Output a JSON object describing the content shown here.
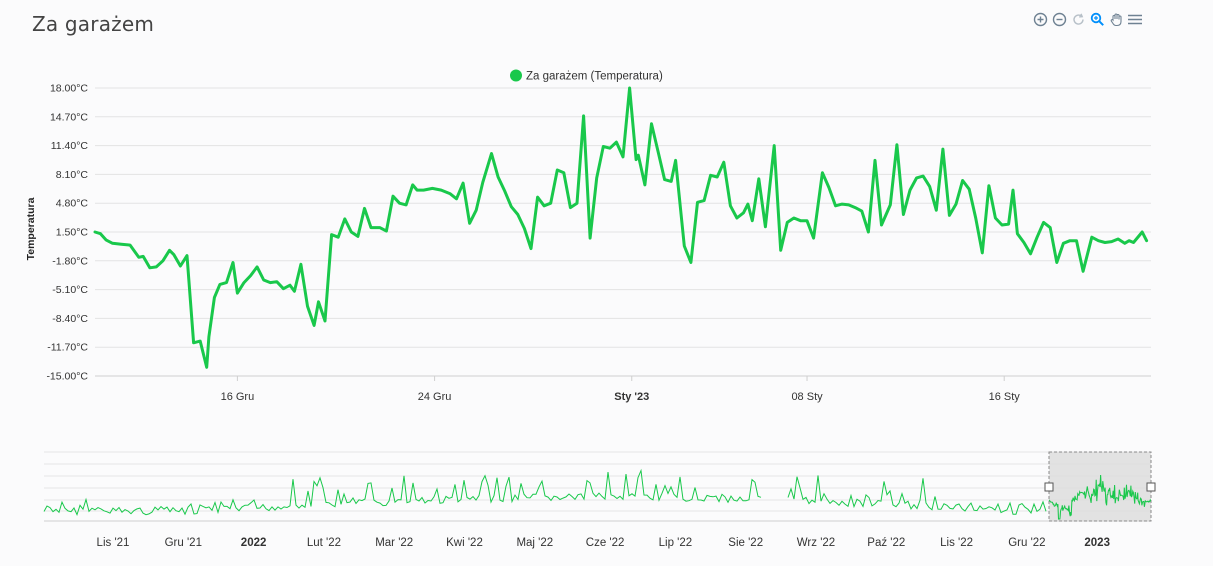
{
  "title": "Za garażem",
  "toolbar": {
    "zoom_in": "zoom-in-icon",
    "zoom_out": "zoom-out-icon",
    "reset": "reset-icon",
    "zoom_select": "magnifier-icon",
    "pan": "hand-pan-icon",
    "menu": "menu-icon"
  },
  "colors": {
    "series": "#19c84b",
    "grid": "#e3e3e3",
    "selection": "#d9d9d9"
  },
  "chart_data": {
    "type": "line",
    "title": "Za garażem",
    "legend": [
      "Za garażem (Temperatura)"
    ],
    "legend_position": "top-center",
    "ylabel": "Temperatura",
    "xlabel": "",
    "ylim": [
      -15.0,
      18.0
    ],
    "yticks": [
      "18.00°C",
      "14.70°C",
      "11.40°C",
      "8.10°C",
      "4.80°C",
      "1.50°C",
      "-1.80°C",
      "-5.10°C",
      "-8.40°C",
      "-11.70°C",
      "-15.00°C"
    ],
    "xlim_days": [
      0,
      48.2
    ],
    "xticks": [
      {
        "day": 6.5,
        "label": "16 Gru",
        "bold": false
      },
      {
        "day": 15.5,
        "label": "24 Gru",
        "bold": false
      },
      {
        "day": 24.5,
        "label": "Sty '23",
        "bold": true
      },
      {
        "day": 32.5,
        "label": "08 Sty",
        "bold": false
      },
      {
        "day": 41.5,
        "label": "16 Sty",
        "bold": false
      }
    ],
    "series": [
      {
        "name": "Za garażem (Temperatura)",
        "points": [
          [
            0.0,
            1.5
          ],
          [
            0.25,
            1.3
          ],
          [
            0.5,
            0.6
          ],
          [
            0.8,
            0.2
          ],
          [
            1.2,
            0.1
          ],
          [
            1.6,
            0.0
          ],
          [
            2.0,
            -1.4
          ],
          [
            2.2,
            -1.3
          ],
          [
            2.5,
            -2.6
          ],
          [
            2.8,
            -2.5
          ],
          [
            3.1,
            -1.8
          ],
          [
            3.4,
            -0.6
          ],
          [
            3.6,
            -1.1
          ],
          [
            3.9,
            -2.4
          ],
          [
            4.2,
            -1.2
          ],
          [
            4.5,
            -11.2
          ],
          [
            4.8,
            -11.0
          ],
          [
            5.1,
            -14.0
          ],
          [
            5.2,
            -10.5
          ],
          [
            5.45,
            -6.0
          ],
          [
            5.7,
            -4.5
          ],
          [
            6.0,
            -4.3
          ],
          [
            6.3,
            -2.0
          ],
          [
            6.5,
            -5.5
          ],
          [
            6.8,
            -4.3
          ],
          [
            7.1,
            -3.5
          ],
          [
            7.4,
            -2.5
          ],
          [
            7.7,
            -4.0
          ],
          [
            8.0,
            -4.3
          ],
          [
            8.3,
            -4.2
          ],
          [
            8.6,
            -5.0
          ],
          [
            8.9,
            -4.6
          ],
          [
            9.1,
            -5.3
          ],
          [
            9.4,
            -2.2
          ],
          [
            9.7,
            -7.0
          ],
          [
            10.0,
            -9.2
          ],
          [
            10.2,
            -6.5
          ],
          [
            10.5,
            -8.7
          ],
          [
            10.8,
            1.2
          ],
          [
            11.1,
            0.9
          ],
          [
            11.4,
            3.0
          ],
          [
            11.7,
            1.5
          ],
          [
            12.0,
            1.0
          ],
          [
            12.3,
            4.2
          ],
          [
            12.6,
            2.0
          ],
          [
            13.0,
            2.0
          ],
          [
            13.3,
            1.6
          ],
          [
            13.6,
            5.6
          ],
          [
            13.9,
            4.8
          ],
          [
            14.2,
            4.6
          ],
          [
            14.5,
            6.9
          ],
          [
            14.7,
            6.3
          ],
          [
            15.0,
            6.3
          ],
          [
            15.4,
            6.5
          ],
          [
            15.8,
            6.3
          ],
          [
            16.2,
            5.9
          ],
          [
            16.5,
            5.3
          ],
          [
            16.8,
            7.1
          ],
          [
            17.1,
            2.5
          ],
          [
            17.4,
            4.0
          ],
          [
            17.7,
            7.2
          ],
          [
            18.1,
            10.5
          ],
          [
            18.4,
            7.8
          ],
          [
            18.7,
            6.2
          ],
          [
            19.0,
            4.4
          ],
          [
            19.3,
            3.5
          ],
          [
            19.6,
            1.9
          ],
          [
            19.9,
            -0.4
          ],
          [
            20.2,
            5.5
          ],
          [
            20.5,
            4.5
          ],
          [
            20.8,
            4.8
          ],
          [
            21.1,
            8.6
          ],
          [
            21.4,
            8.3
          ],
          [
            21.7,
            4.3
          ],
          [
            22.0,
            4.8
          ],
          [
            22.3,
            14.8
          ],
          [
            22.6,
            0.8
          ],
          [
            22.9,
            7.7
          ],
          [
            23.2,
            11.3
          ],
          [
            23.5,
            11.1
          ],
          [
            23.8,
            11.8
          ],
          [
            24.1,
            10.1
          ],
          [
            24.4,
            18.0
          ],
          [
            24.7,
            9.8
          ],
          [
            24.8,
            10.3
          ],
          [
            25.1,
            6.9
          ],
          [
            25.4,
            13.9
          ],
          [
            25.7,
            10.7
          ],
          [
            26.0,
            7.5
          ],
          [
            26.3,
            7.3
          ],
          [
            26.5,
            9.7
          ],
          [
            26.9,
            -0.1
          ],
          [
            27.2,
            -2.0
          ],
          [
            27.5,
            4.9
          ],
          [
            27.8,
            5.1
          ],
          [
            28.1,
            8.0
          ],
          [
            28.4,
            7.8
          ],
          [
            28.7,
            9.5
          ],
          [
            29.0,
            4.5
          ],
          [
            29.3,
            3.1
          ],
          [
            29.6,
            3.7
          ],
          [
            29.8,
            4.7
          ],
          [
            30.0,
            2.8
          ],
          [
            30.3,
            7.6
          ],
          [
            30.6,
            2.1
          ],
          [
            31.0,
            11.4
          ],
          [
            31.3,
            -0.6
          ],
          [
            31.6,
            2.6
          ],
          [
            31.9,
            3.1
          ],
          [
            32.2,
            2.8
          ],
          [
            32.5,
            2.8
          ],
          [
            32.8,
            0.8
          ],
          [
            33.2,
            8.3
          ],
          [
            33.5,
            6.6
          ],
          [
            33.8,
            4.5
          ],
          [
            34.1,
            4.7
          ],
          [
            34.4,
            4.6
          ],
          [
            34.7,
            4.3
          ],
          [
            35.0,
            3.9
          ],
          [
            35.3,
            1.5
          ],
          [
            35.6,
            9.7
          ],
          [
            35.9,
            2.3
          ],
          [
            36.3,
            4.6
          ],
          [
            36.6,
            11.5
          ],
          [
            36.9,
            3.5
          ],
          [
            37.2,
            6.3
          ],
          [
            37.5,
            7.7
          ],
          [
            37.8,
            7.9
          ],
          [
            38.1,
            6.7
          ],
          [
            38.4,
            4.0
          ],
          [
            38.7,
            11.0
          ],
          [
            39.0,
            3.4
          ],
          [
            39.3,
            4.7
          ],
          [
            39.6,
            7.4
          ],
          [
            39.9,
            6.4
          ],
          [
            40.2,
            3.1
          ],
          [
            40.5,
            -0.9
          ],
          [
            40.8,
            6.8
          ],
          [
            41.1,
            3.1
          ],
          [
            41.4,
            2.3
          ],
          [
            41.7,
            2.4
          ],
          [
            41.9,
            6.3
          ],
          [
            42.1,
            1.3
          ],
          [
            42.4,
            0.3
          ],
          [
            42.7,
            -1.0
          ],
          [
            43.0,
            0.9
          ],
          [
            43.3,
            2.6
          ],
          [
            43.6,
            2.0
          ],
          [
            43.9,
            -2.0
          ],
          [
            44.2,
            0.2
          ],
          [
            44.5,
            0.5
          ],
          [
            44.8,
            0.5
          ],
          [
            45.1,
            -3.0
          ],
          [
            45.5,
            0.9
          ],
          [
            45.8,
            0.5
          ],
          [
            46.1,
            0.3
          ],
          [
            46.4,
            0.4
          ],
          [
            46.7,
            0.7
          ],
          [
            47.0,
            0.2
          ],
          [
            47.2,
            0.5
          ],
          [
            47.4,
            0.3
          ],
          [
            47.8,
            1.5
          ],
          [
            48.0,
            0.5
          ]
        ]
      }
    ],
    "navigator": {
      "labels": [
        {
          "label": "Lis '21",
          "bold": false
        },
        {
          "label": "Gru '21",
          "bold": false
        },
        {
          "label": "2022",
          "bold": true
        },
        {
          "label": "Lut '22",
          "bold": false
        },
        {
          "label": "Mar '22",
          "bold": false
        },
        {
          "label": "Kwi '22",
          "bold": false
        },
        {
          "label": "Maj '22",
          "bold": false
        },
        {
          "label": "Cze '22",
          "bold": false
        },
        {
          "label": "Lip '22",
          "bold": false
        },
        {
          "label": "Sie '22",
          "bold": false
        },
        {
          "label": "Wrz '22",
          "bold": false
        },
        {
          "label": "Paź '22",
          "bold": false
        },
        {
          "label": "Lis '22",
          "bold": false
        },
        {
          "label": "Gru '22",
          "bold": false
        },
        {
          "label": "2023",
          "bold": true
        }
      ],
      "selection": "last ~6 weeks (10 Gru 2022 – 27 Sty 2023)"
    }
  }
}
